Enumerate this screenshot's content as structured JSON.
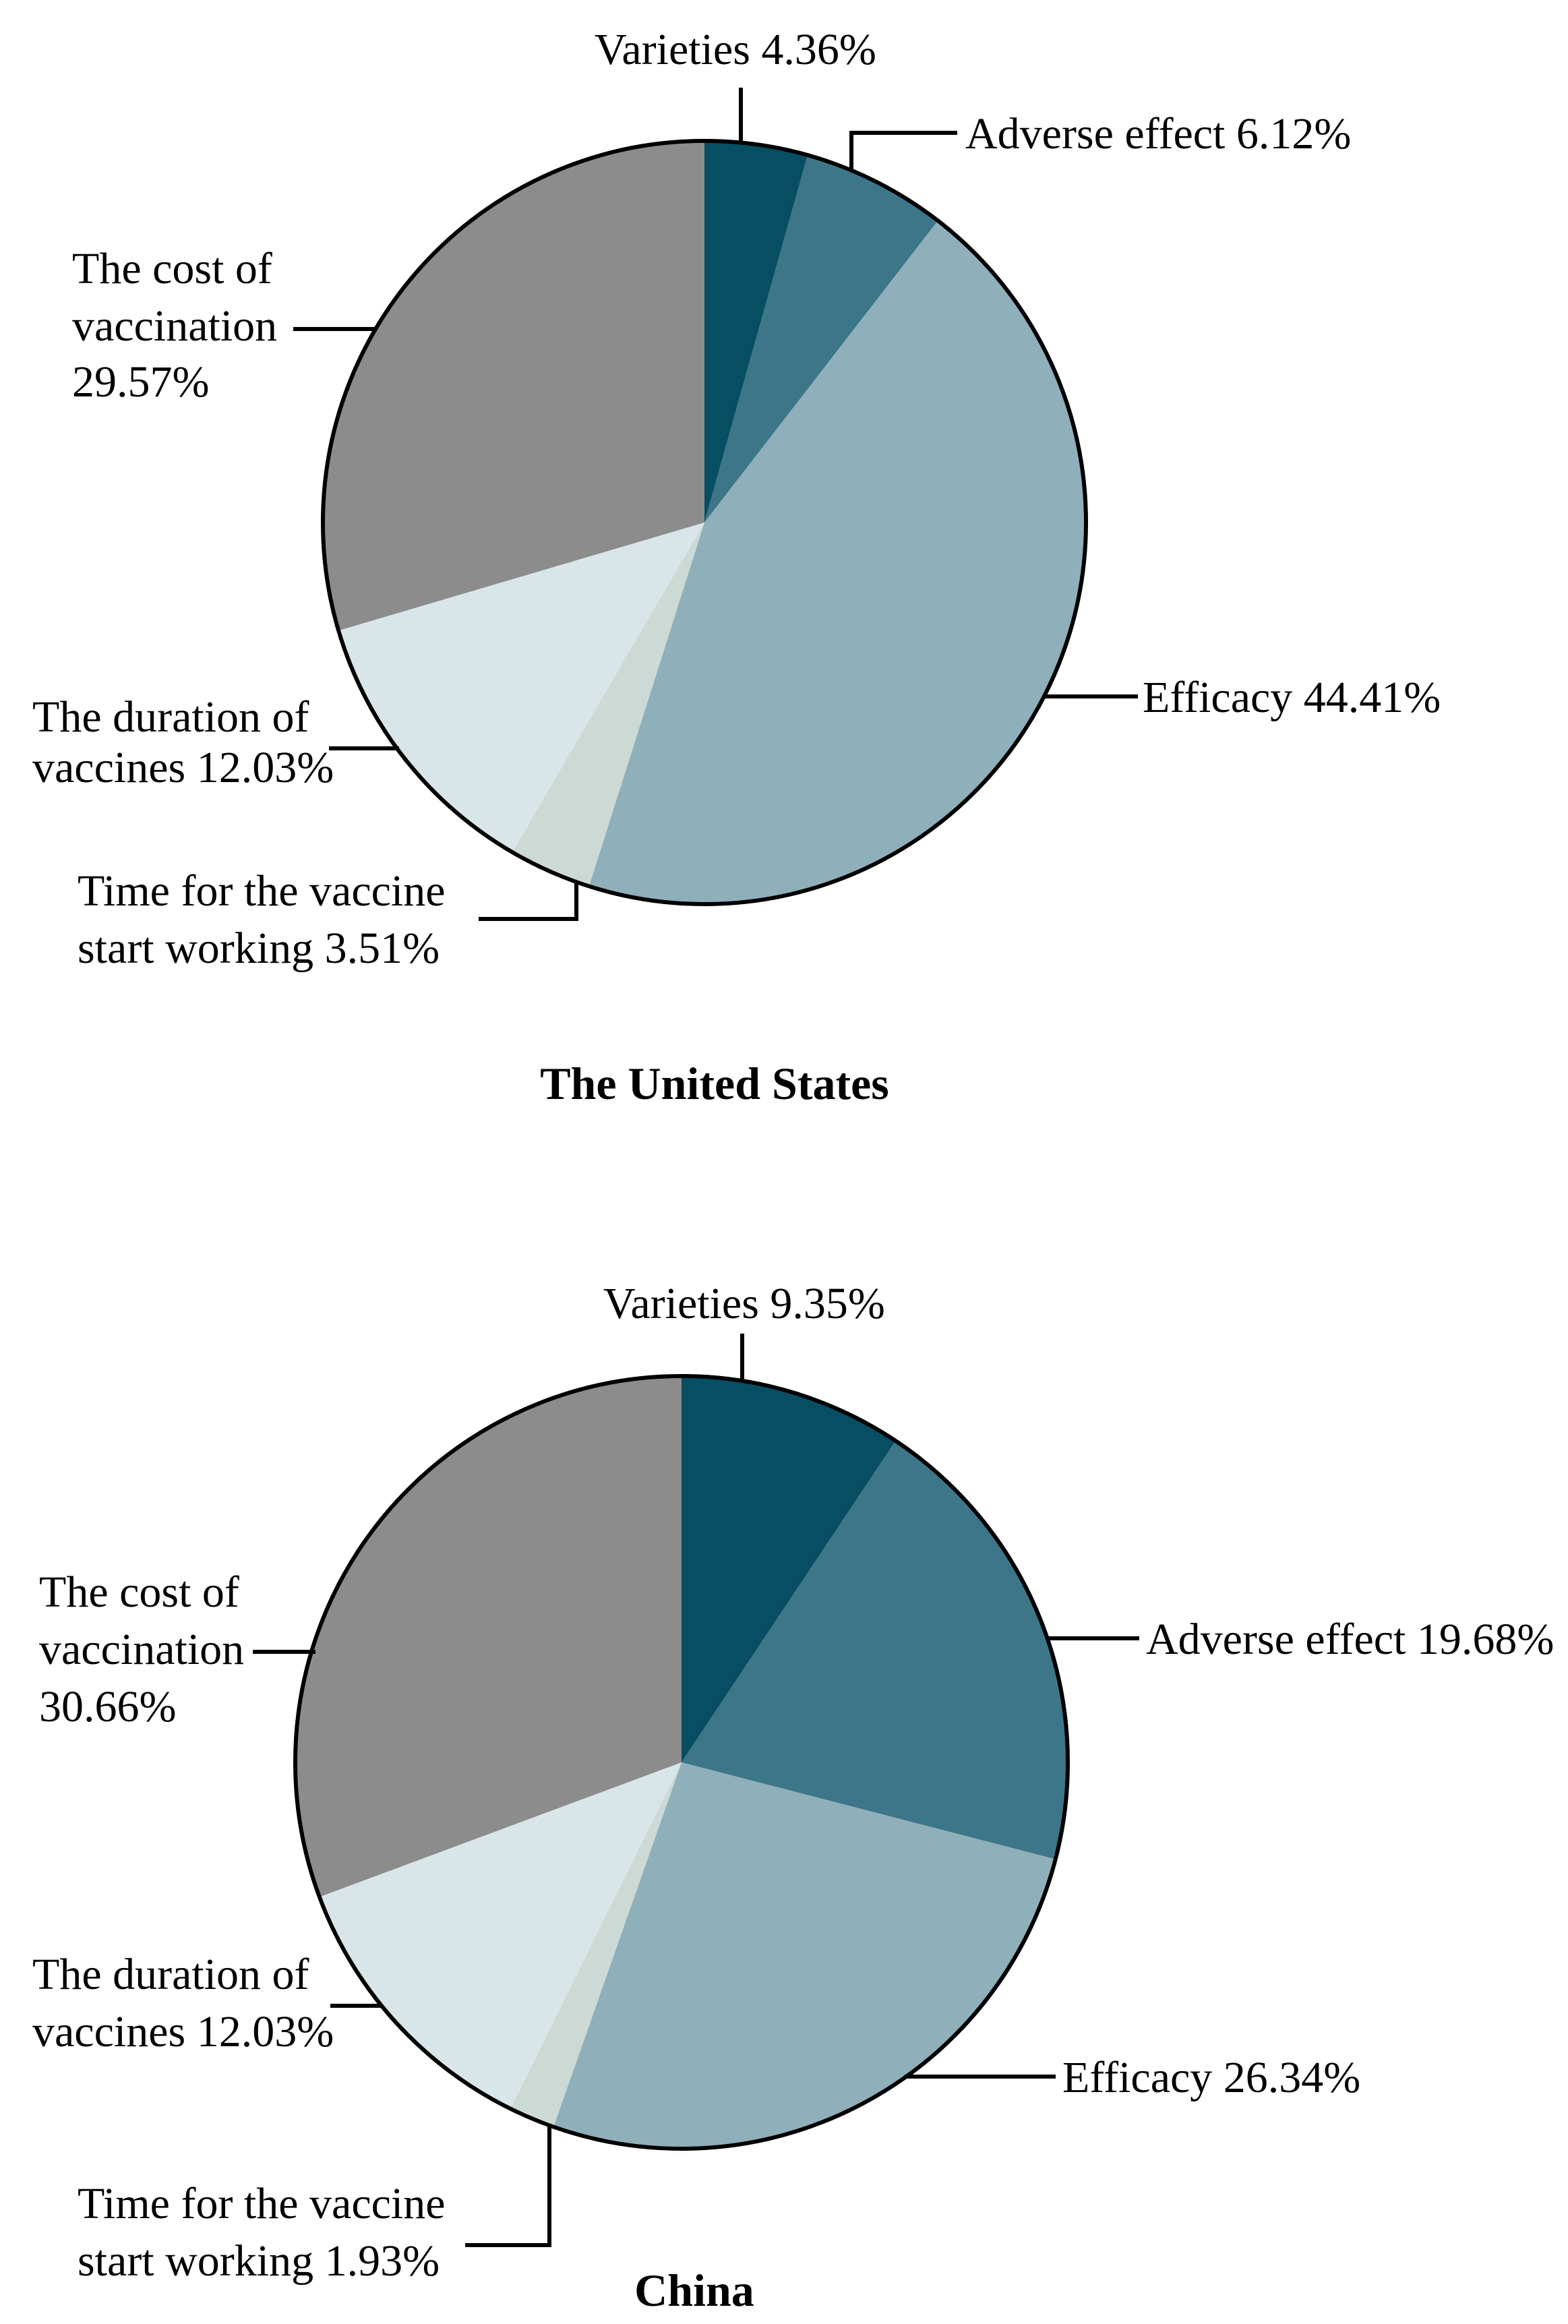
{
  "figure": {
    "background": "#ffffff",
    "description_topic": "Concerns about COVID-19 vaccines, pie charts for two countries"
  },
  "chart_data": [
    {
      "type": "pie",
      "title": "The United States",
      "start_angle_deg": 0,
      "direction": "clockwise",
      "legend": "none",
      "labels_position": "outside-with-leader-lines",
      "slices": [
        {
          "label": "Varieties",
          "value": 4.36,
          "display": "Varieties 4.36%",
          "label_lines": [
            "Varieties 4.36%"
          ],
          "color": "#074e62"
        },
        {
          "label": "Adverse effect",
          "value": 6.12,
          "display": "Adverse effect 6.12%",
          "label_lines": [
            "Adverse effect 6.12%"
          ],
          "color": "#3d7689"
        },
        {
          "label": "Efficacy",
          "value": 44.41,
          "display": "Efficacy 44.41%",
          "label_lines": [
            "Efficacy 44.41%"
          ],
          "color": "#8fafba"
        },
        {
          "label": "Time for the vaccine start working",
          "value": 3.51,
          "display": "Time for the vaccine start working 3.51%",
          "label_lines": [
            "Time for the vaccine",
            "start working 3.51%"
          ],
          "color": "#ccd9d5"
        },
        {
          "label": "The duration of vaccines",
          "value": 12.03,
          "display": "The duration of vaccines 12.03%",
          "label_lines": [
            "The duration of",
            "vaccines 12.03%"
          ],
          "color": "#d9e6e9"
        },
        {
          "label": "The cost of vaccination",
          "value": 29.57,
          "display": "The cost of vaccination 29.57%",
          "label_lines": [
            "The cost of",
            "vaccination",
            "29.57%"
          ],
          "color": "#8c8c8c"
        }
      ]
    },
    {
      "type": "pie",
      "title": "China",
      "start_angle_deg": 0,
      "direction": "clockwise",
      "legend": "none",
      "labels_position": "outside-with-leader-lines",
      "slices": [
        {
          "label": "Varieties",
          "value": 9.35,
          "display": "Varieties 9.35%",
          "label_lines": [
            "Varieties 9.35%"
          ],
          "color": "#074e62"
        },
        {
          "label": "Adverse effect",
          "value": 19.68,
          "display": "Adverse effect 19.68%",
          "label_lines": [
            "Adverse effect 19.68%"
          ],
          "color": "#3d7689"
        },
        {
          "label": "Efficacy",
          "value": 26.34,
          "display": "Efficacy 26.34%",
          "label_lines": [
            "Efficacy 26.34%"
          ],
          "color": "#8fafba"
        },
        {
          "label": "Time for the vaccine start working",
          "value": 1.93,
          "display": "Time for the vaccine start working 1.93%",
          "label_lines": [
            "Time for the vaccine",
            "start working 1.93%"
          ],
          "color": "#ccd9d5"
        },
        {
          "label": "The duration of vaccines",
          "value": 12.03,
          "display": "The duration of vaccines 12.03%",
          "label_lines": [
            "The duration of",
            "vaccines 12.03%"
          ],
          "color": "#d9e6e9"
        },
        {
          "label": "The cost of vaccination",
          "value": 30.66,
          "display": "The cost of vaccination 30.66%",
          "label_lines": [
            "The cost of",
            "vaccination",
            "30.66%"
          ],
          "color": "#8c8c8c"
        }
      ]
    }
  ]
}
